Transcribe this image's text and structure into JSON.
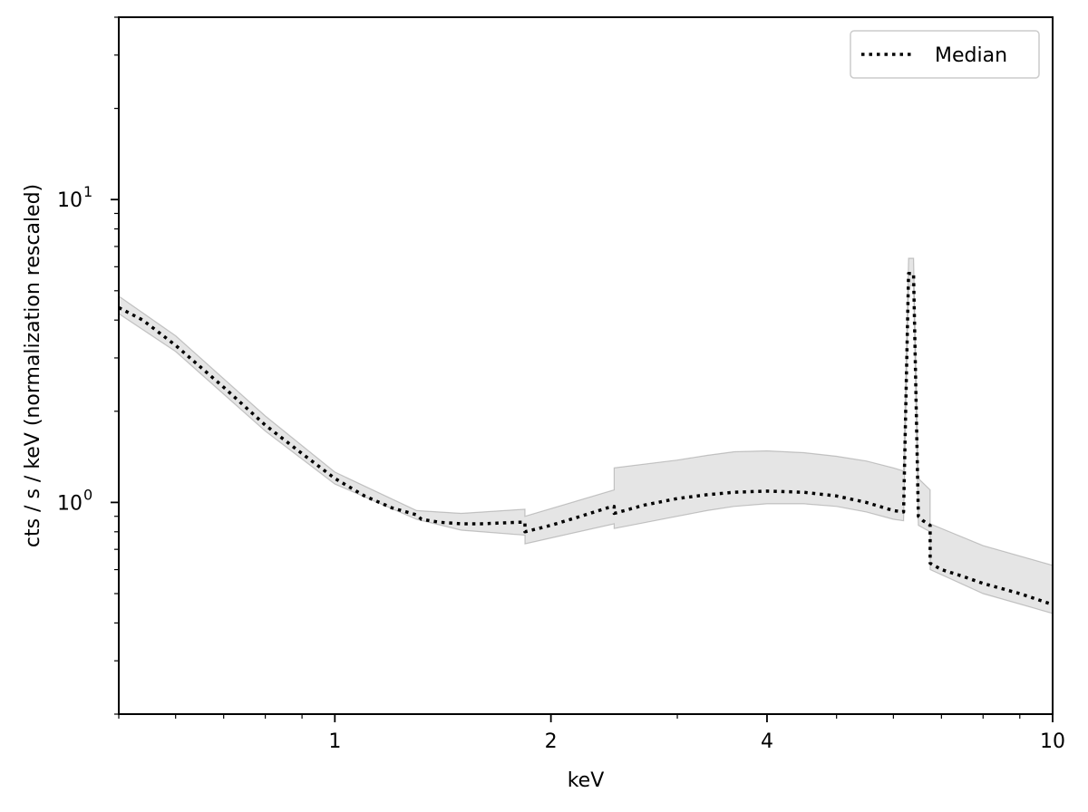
{
  "chart_data": {
    "type": "line",
    "title": "",
    "xlabel": "keV",
    "ylabel": "cts / s / keV (normalization rescaled)",
    "xscale": "log",
    "yscale": "log",
    "xlim": [
      0.5,
      10
    ],
    "ylim": [
      0.2,
      40
    ],
    "x_ticks": [
      {
        "value": 1,
        "label": "1"
      },
      {
        "value": 2,
        "label": "2"
      },
      {
        "value": 4,
        "label": "4"
      },
      {
        "value": 10,
        "label": "10"
      }
    ],
    "y_ticks": [
      {
        "value": 1,
        "label": "10",
        "exp": "0"
      },
      {
        "value": 10,
        "label": "10",
        "exp": "1"
      }
    ],
    "grid": false,
    "legend": {
      "position": "top-right",
      "entries": [
        {
          "label": "Median",
          "style": "dotted",
          "color": "#000000"
        }
      ]
    },
    "band_color": "#888888",
    "series": [
      {
        "name": "Median",
        "style": "dotted",
        "x": [
          0.5,
          0.54,
          0.6,
          0.7,
          0.8,
          0.9,
          1.0,
          1.1,
          1.2,
          1.3,
          1.32,
          1.4,
          1.5,
          1.6,
          1.7,
          1.8,
          1.84,
          1.84,
          2.0,
          2.2,
          2.4,
          2.45,
          2.45,
          2.7,
          3.0,
          3.3,
          3.6,
          4.0,
          4.5,
          5.0,
          5.5,
          6.0,
          6.2,
          6.3,
          6.4,
          6.5,
          6.6,
          6.75,
          6.75,
          7.0,
          7.5,
          8.0,
          9.0,
          10.0
        ],
        "y": [
          4.4,
          4.0,
          3.3,
          2.4,
          1.8,
          1.45,
          1.2,
          1.05,
          0.96,
          0.91,
          0.88,
          0.86,
          0.85,
          0.85,
          0.855,
          0.86,
          0.86,
          0.8,
          0.84,
          0.9,
          0.96,
          0.97,
          0.92,
          0.98,
          1.03,
          1.06,
          1.08,
          1.09,
          1.08,
          1.05,
          1.0,
          0.94,
          0.93,
          5.7,
          5.7,
          0.9,
          0.87,
          0.84,
          0.63,
          0.6,
          0.57,
          0.54,
          0.5,
          0.46
        ]
      },
      {
        "name": "",
        "style": "band-upper",
        "x": [
          0.5,
          0.6,
          0.8,
          1.0,
          1.3,
          1.5,
          1.84,
          1.84,
          2.45,
          2.45,
          3.0,
          3.3,
          3.6,
          4.0,
          4.5,
          5.0,
          5.5,
          6.0,
          6.2,
          6.3,
          6.4,
          6.5,
          6.75,
          6.75,
          8.0,
          10.0
        ],
        "y": [
          4.8,
          3.55,
          1.93,
          1.26,
          0.94,
          0.92,
          0.95,
          0.9,
          1.1,
          1.3,
          1.38,
          1.43,
          1.47,
          1.48,
          1.46,
          1.42,
          1.37,
          1.3,
          1.27,
          6.4,
          6.4,
          1.2,
          1.1,
          0.85,
          0.72,
          0.62
        ]
      },
      {
        "name": "",
        "style": "band-lower",
        "x": [
          0.5,
          0.6,
          0.8,
          1.0,
          1.3,
          1.5,
          1.84,
          1.84,
          2.45,
          2.45,
          3.0,
          3.3,
          3.6,
          4.0,
          4.5,
          5.0,
          5.5,
          6.0,
          6.2,
          6.3,
          6.4,
          6.5,
          6.75,
          6.75,
          8.0,
          10.0
        ],
        "y": [
          4.2,
          3.15,
          1.72,
          1.15,
          0.88,
          0.81,
          0.78,
          0.73,
          0.85,
          0.82,
          0.9,
          0.94,
          0.97,
          0.99,
          0.99,
          0.97,
          0.93,
          0.88,
          0.87,
          5.2,
          5.2,
          0.84,
          0.8,
          0.6,
          0.5,
          0.43
        ]
      }
    ]
  }
}
